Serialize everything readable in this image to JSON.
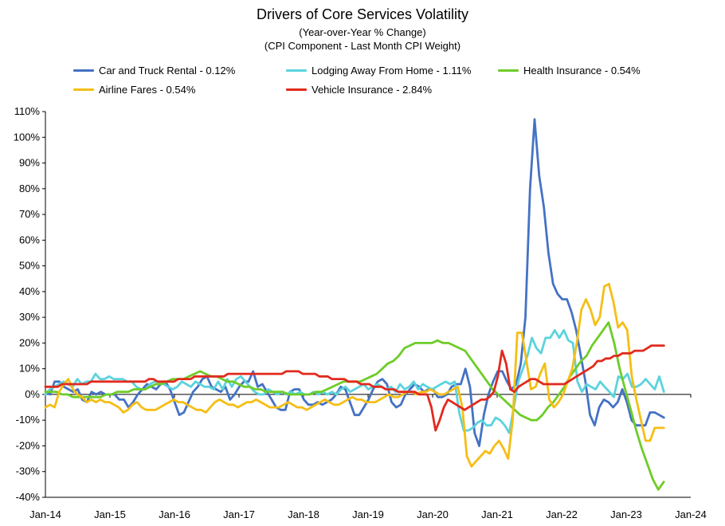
{
  "chart_data": {
    "type": "line",
    "title": "Drivers of Core Services Volatility",
    "subtitle": "(Year-over-Year % Change)",
    "subtitle2": "(CPI Component - Last Month CPI Weight)",
    "xlabel": "",
    "ylabel": "",
    "ylim": [
      -40,
      110
    ],
    "yticks": [
      "-40%",
      "-30%",
      "-20%",
      "-10%",
      "0%",
      "10%",
      "20%",
      "30%",
      "40%",
      "50%",
      "60%",
      "70%",
      "80%",
      "90%",
      "100%",
      "110%"
    ],
    "xticks": [
      "Jan-14",
      "Jan-15",
      "Jan-16",
      "Jan-17",
      "Jan-18",
      "Jan-19",
      "Jan-20",
      "Jan-21",
      "Jan-22",
      "Jan-23",
      "Jan-24"
    ],
    "x_start": "Jan-14",
    "grid": false,
    "legend_position": "top",
    "series": [
      {
        "name": "Car and Truck Rental - 0.12%",
        "color": "#4472c4",
        "values": [
          1,
          0,
          5,
          5,
          3,
          2,
          1,
          2,
          -2,
          -3,
          1,
          0,
          1,
          0,
          0,
          0,
          -2,
          -2,
          -5,
          -3,
          0,
          2,
          4,
          3,
          2,
          4,
          5,
          2,
          -3,
          -8,
          -7,
          -3,
          1,
          3,
          6,
          7,
          3,
          2,
          1,
          3,
          -2,
          0,
          3,
          5,
          5,
          9,
          3,
          4,
          1,
          -2,
          -5,
          -6,
          -6,
          1,
          2,
          2,
          -2,
          -4,
          -4,
          -3,
          -4,
          -3,
          -2,
          0,
          3,
          2,
          -3,
          -8,
          -8,
          -5,
          -2,
          2,
          5,
          6,
          4,
          -3,
          -5,
          -4,
          0,
          2,
          4,
          3,
          1,
          2,
          2,
          -1,
          -1,
          0,
          3,
          4,
          4,
          10,
          3,
          -15,
          -20,
          -8,
          0,
          5,
          9,
          9,
          5,
          2,
          4,
          12,
          30,
          80,
          107,
          85,
          73,
          55,
          43,
          39,
          37,
          37,
          32,
          25,
          15,
          5,
          -8,
          -12,
          -5,
          -2,
          -3,
          -5,
          -3,
          2,
          -3,
          -10,
          -12,
          -12,
          -12,
          -7,
          -7,
          -8,
          -9
        ]
      },
      {
        "name": "Lodging Away From Home - 1.11%",
        "color": "#5bd3de",
        "values": [
          0,
          2,
          3,
          4,
          5,
          4,
          3,
          6,
          4,
          5,
          5,
          8,
          6,
          6,
          7,
          6,
          6,
          6,
          5,
          5,
          3,
          2,
          2,
          4,
          5,
          5,
          4,
          3,
          2,
          3,
          5,
          4,
          3,
          5,
          4,
          3,
          3,
          2,
          5,
          2,
          6,
          3,
          6,
          7,
          5,
          3,
          1,
          0,
          0,
          2,
          1,
          0,
          1,
          0,
          1,
          0,
          1,
          0,
          0,
          1,
          0,
          1,
          0,
          1,
          0,
          2,
          3,
          1,
          2,
          3,
          4,
          2,
          3,
          4,
          3,
          2,
          3,
          1,
          4,
          2,
          3,
          5,
          2,
          4,
          3,
          2,
          3,
          4,
          5,
          4,
          5,
          -7,
          -14,
          -14,
          -13,
          -11,
          -10,
          -12,
          -12,
          -9,
          -10,
          -12,
          -15,
          -5,
          5,
          10,
          15,
          22,
          18,
          16,
          22,
          22,
          25,
          22,
          25,
          21,
          20,
          5,
          1,
          4,
          3,
          2,
          5,
          3,
          1,
          -1,
          7,
          6,
          8,
          3,
          3,
          4,
          6,
          4,
          2,
          7,
          1
        ]
      },
      {
        "name": "Health Insurance - 0.54%",
        "color": "#6ecc28",
        "values": [
          1,
          1,
          1,
          0,
          0,
          -1,
          -1,
          -1,
          -1,
          -1,
          -1,
          0,
          0,
          1,
          1,
          1,
          2,
          2,
          2,
          3,
          4,
          4,
          5,
          6,
          6,
          6,
          7,
          8,
          9,
          8,
          7,
          7,
          6,
          5,
          5,
          4,
          3,
          3,
          2,
          2,
          1,
          1,
          1,
          1,
          0,
          0,
          0,
          0,
          0,
          1,
          1,
          2,
          3,
          4,
          5,
          5,
          5,
          5,
          6,
          7,
          8,
          10,
          12,
          13,
          15,
          18,
          19,
          20,
          20,
          20,
          20,
          21,
          20,
          20,
          19,
          18,
          17,
          14,
          11,
          8,
          5,
          2,
          0,
          -2,
          -4,
          -6,
          -8,
          -9,
          -10,
          -10,
          -8,
          -5,
          -3,
          0,
          3,
          7,
          10,
          13,
          15,
          19,
          22,
          25,
          28,
          20,
          10,
          2,
          -6,
          -14,
          -21,
          -27,
          -33,
          -37,
          -34
        ]
      },
      {
        "name": "Airline Fares - 0.54%",
        "color": "#f5be15",
        "values": [
          -5,
          -4,
          -5,
          1,
          4,
          6,
          2,
          0,
          -1,
          -3,
          -2,
          -3,
          -2,
          -3,
          -3,
          -4,
          -5,
          -7,
          -6,
          -4,
          -3,
          -5,
          -6,
          -6,
          -6,
          -5,
          -4,
          -3,
          -2,
          -3,
          -3,
          -4,
          -5,
          -6,
          -6,
          -7,
          -5,
          -3,
          -2,
          -3,
          -4,
          -4,
          -5,
          -4,
          -3,
          -3,
          -2,
          -3,
          -4,
          -5,
          -5,
          -5,
          -4,
          -3,
          -4,
          -5,
          -5,
          -6,
          -5,
          -4,
          -3,
          -2,
          -3,
          -4,
          -4,
          -3,
          -2,
          -1,
          -2,
          -2,
          -3,
          -3,
          -3,
          -2,
          -1,
          0,
          -1,
          -1,
          0,
          1,
          1,
          0,
          1,
          1,
          2,
          1,
          0,
          0,
          1,
          2,
          3,
          -5,
          -24,
          -28,
          -26,
          -24,
          -22,
          -23,
          -20,
          -18,
          -21,
          -25,
          -10,
          24,
          24,
          13,
          2,
          3,
          8,
          12,
          -2,
          -5,
          -3,
          0,
          5,
          10,
          20,
          33,
          37,
          33,
          27,
          30,
          42,
          43,
          36,
          26,
          28,
          25,
          7,
          -2,
          -10,
          -18,
          -18,
          -13,
          -13,
          -13
        ]
      },
      {
        "name": "Vehicle Insurance - 2.84%",
        "color": "#e12a1d",
        "values": [
          3,
          3,
          3,
          3,
          4,
          4,
          4,
          4,
          4,
          4,
          4,
          5,
          5,
          5,
          5,
          5,
          5,
          5,
          5,
          5,
          5,
          5,
          5,
          5,
          5,
          6,
          6,
          5,
          5,
          5,
          5,
          5,
          6,
          6,
          6,
          6,
          7,
          7,
          7,
          7,
          7,
          7,
          7,
          7,
          8,
          8,
          8,
          8,
          8,
          8,
          8,
          8,
          8,
          8,
          8,
          8,
          8,
          8,
          9,
          9,
          9,
          9,
          8,
          8,
          8,
          8,
          7,
          7,
          7,
          6,
          6,
          6,
          6,
          5,
          5,
          5,
          4,
          4,
          4,
          3,
          3,
          3,
          2,
          2,
          2,
          1,
          1,
          1,
          1,
          1,
          0,
          0,
          0,
          -5,
          -14,
          -10,
          -5,
          -2,
          -3,
          -4,
          -5,
          -6,
          -5,
          -4,
          -3,
          -2,
          -2,
          -1,
          1,
          7,
          17,
          12,
          2,
          1,
          3,
          4,
          5,
          6,
          6,
          5,
          4,
          4,
          4,
          4,
          4,
          4,
          5,
          6,
          7,
          8,
          9,
          10,
          11,
          13,
          13,
          14,
          14,
          15,
          15,
          16,
          16,
          16,
          17,
          17,
          17,
          18,
          19,
          19,
          19,
          19
        ]
      }
    ]
  }
}
